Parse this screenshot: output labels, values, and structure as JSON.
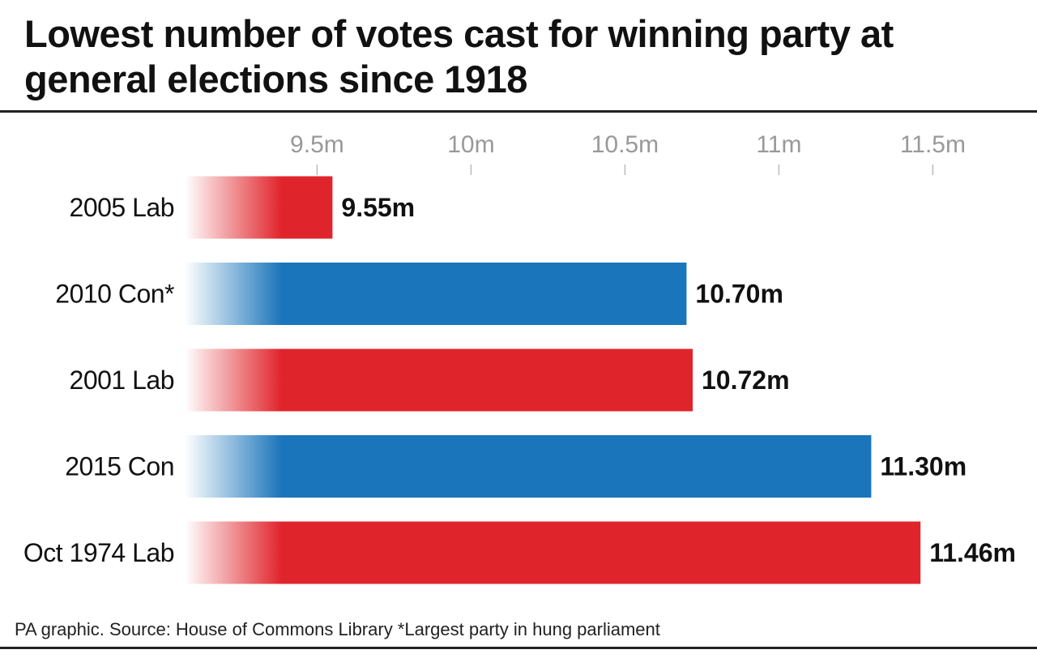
{
  "chart_data": {
    "type": "bar",
    "orientation": "horizontal",
    "title": "Lowest number of votes cast for winning party at general elections since 1918",
    "categories": [
      "2005 Lab",
      "2010 Con*",
      "2001 Lab",
      "2015 Con",
      "Oct 1974 Lab"
    ],
    "values": [
      9.55,
      10.7,
      10.72,
      11.3,
      11.46
    ],
    "data_labels": [
      "9.55m",
      "10.70m",
      "10.72m",
      "11.30m",
      "11.46m"
    ],
    "bar_colors": [
      "#e0242b",
      "#1a75bb",
      "#e0242b",
      "#1a75bb",
      "#e0242b"
    ],
    "x_ticks": [
      9.5,
      10,
      10.5,
      11,
      11.5
    ],
    "x_tick_labels": [
      "9.5m",
      "10m",
      "10.5m",
      "11m",
      "11.5m"
    ],
    "xlim": [
      9.07,
      11.6
    ],
    "axis_position": "top",
    "grid": false,
    "bar_style": "gradient fade from white at left",
    "footer": "PA graphic. Source: House of Commons Library *Largest party in hung parliament"
  }
}
